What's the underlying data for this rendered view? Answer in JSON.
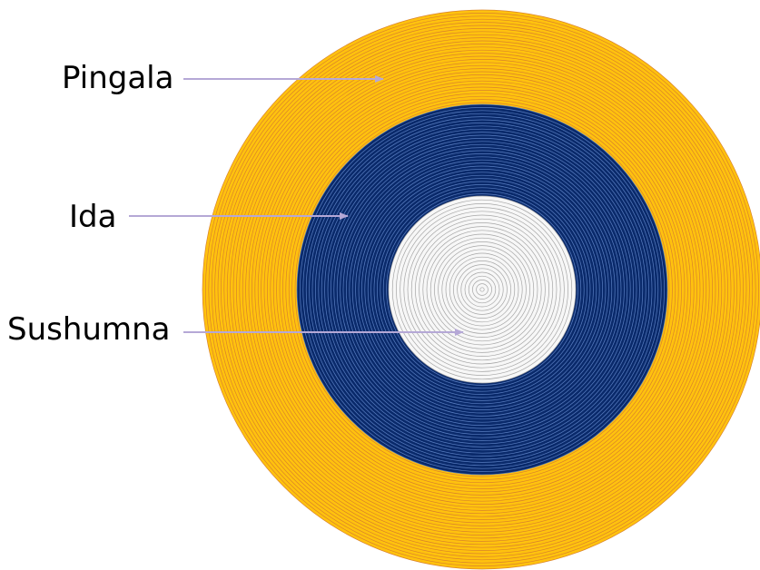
{
  "labels": {
    "outer": "Pingala",
    "middle": "Ida",
    "inner": "Sushumna"
  },
  "colors": {
    "background": "#ffffff",
    "outer_fill": "#ffc20e",
    "outer_ring_line": "#d9822b",
    "middle_fill": "#0a2a6b",
    "middle_ring_line": "#5a7fc2",
    "inner_fill": "#f7f7f7",
    "inner_ring_line": "#a6a6a6",
    "arrow": "#b5a8d6"
  }
}
